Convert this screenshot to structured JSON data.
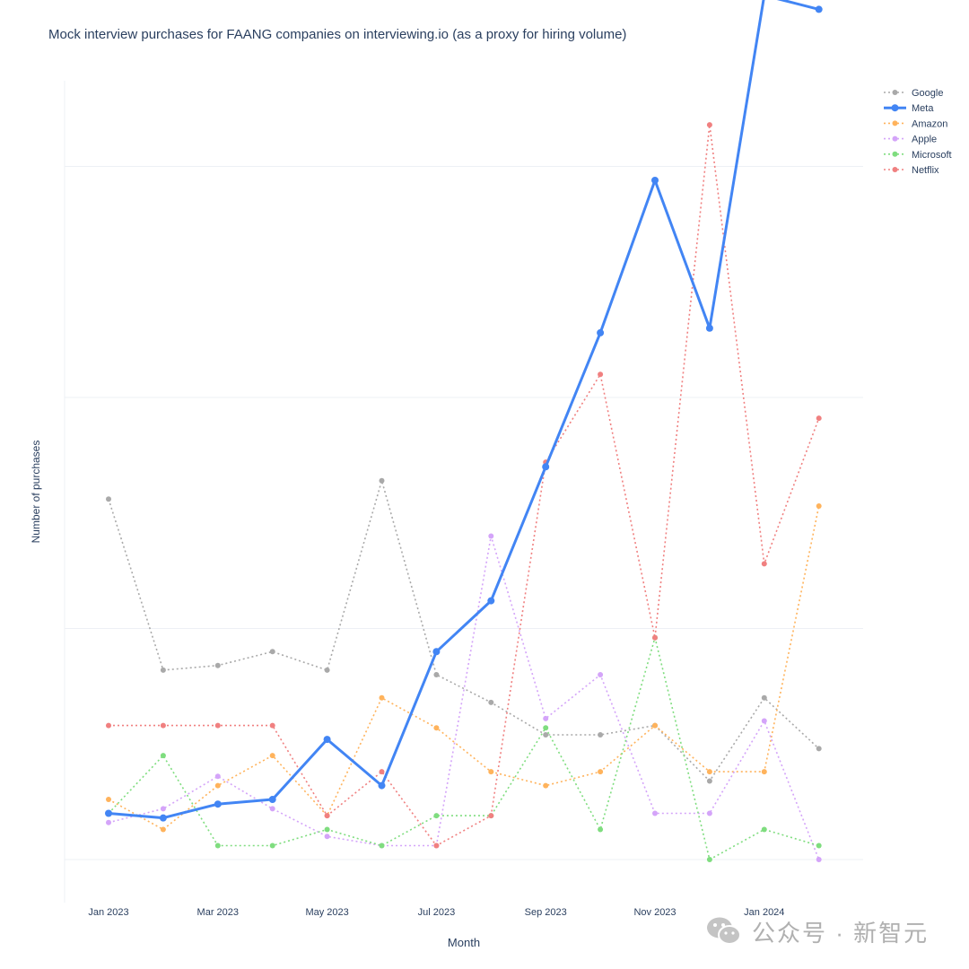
{
  "chart_data": {
    "type": "line",
    "title": "Mock interview purchases for FAANG companies on interviewing.io (as a proxy for hiring volume)",
    "xlabel": "Month",
    "ylabel": "Number of purchases",
    "x": [
      "2023-01",
      "2023-02",
      "2023-03",
      "2023-04",
      "2023-05",
      "2023-06",
      "2023-07",
      "2023-08",
      "2023-09",
      "2023-10",
      "2023-11",
      "2023-12",
      "2024-01",
      "2024-02"
    ],
    "x_tick_labels": [
      "Jan 2023",
      "Mar 2023",
      "May 2023",
      "Jul 2023",
      "Sep 2023",
      "Nov 2023",
      "Jan 2024"
    ],
    "y_tick_labels_visible": false,
    "ylim": [
      -0.19,
      3.5
    ],
    "grid": true,
    "legend_position": "top-right",
    "series": [
      {
        "name": "Google",
        "color": "#a9a9a9",
        "dash": "dot",
        "values": [
          1.56,
          0.82,
          0.84,
          0.9,
          0.82,
          1.64,
          0.8,
          0.68,
          0.54,
          0.54,
          0.58,
          0.34,
          0.7,
          0.48
        ]
      },
      {
        "name": "Meta",
        "color": "#4285f4",
        "dash": "solid",
        "emphasis": true,
        "values": [
          0.2,
          0.18,
          0.24,
          0.26,
          0.52,
          0.32,
          0.9,
          1.12,
          1.7,
          2.28,
          2.94,
          2.3,
          3.74,
          3.68
        ]
      },
      {
        "name": "Amazon",
        "color": "#ffb35c",
        "dash": "dot",
        "values": [
          0.26,
          0.13,
          0.32,
          0.45,
          0.19,
          0.7,
          0.57,
          0.38,
          0.32,
          0.38,
          0.58,
          0.38,
          0.38,
          1.53
        ]
      },
      {
        "name": "Apple",
        "color": "#d4a4f9",
        "dash": "dot",
        "values": [
          0.16,
          0.22,
          0.36,
          0.22,
          0.1,
          0.06,
          0.06,
          1.4,
          0.61,
          0.8,
          0.2,
          0.2,
          0.6,
          0.0
        ]
      },
      {
        "name": "Microsoft",
        "color": "#7fdd7f",
        "dash": "dot",
        "values": [
          0.2,
          0.45,
          0.06,
          0.06,
          0.13,
          0.06,
          0.19,
          0.19,
          0.57,
          0.13,
          0.96,
          0.0,
          0.13,
          0.06
        ]
      },
      {
        "name": "Netflix",
        "color": "#f08080",
        "dash": "dot",
        "values": [
          0.58,
          0.58,
          0.58,
          0.58,
          0.19,
          0.38,
          0.06,
          0.19,
          1.72,
          2.1,
          0.96,
          3.18,
          1.28,
          1.91
        ]
      }
    ]
  },
  "watermark": {
    "text": "公众号 · 新智元",
    "icon": "wechat-icon"
  }
}
